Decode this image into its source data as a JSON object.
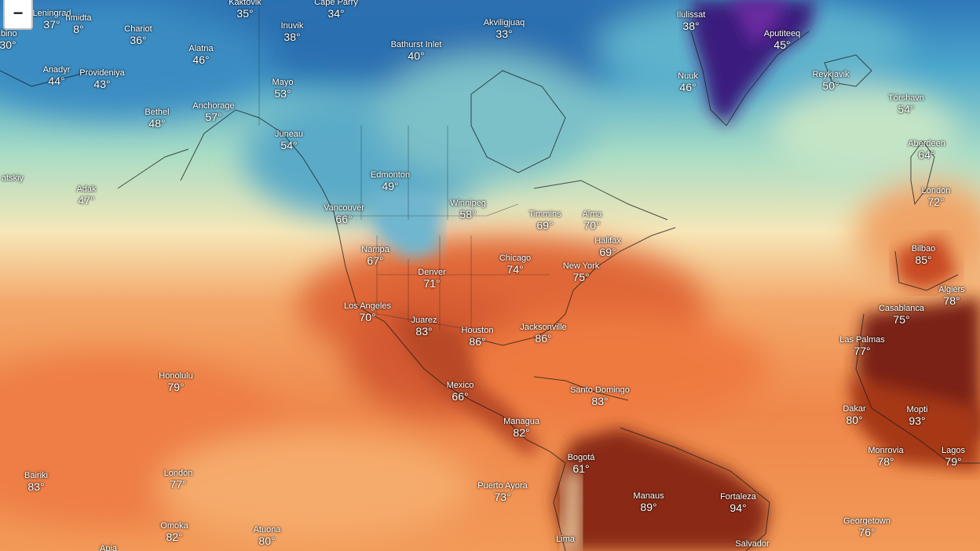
{
  "controls": {
    "zoom_out_label": "−"
  },
  "colors": {
    "cold_arctic": "#1f6fb8",
    "cool_blue": "#4aa6cc",
    "mild_green": "#a9dcc5",
    "neutral_cream": "#f6e7b8",
    "warm_orange": "#f08a4c",
    "hot_red": "#d2552c",
    "very_hot_maroon": "#7a2414",
    "greenland_purple": "#4b1f8a"
  },
  "cities": [
    {
      "name": "Leningrad",
      "temp": "37°"
    },
    {
      "name": "hmidta",
      "temp": "8°"
    },
    {
      "name": "Kaktovik",
      "temp": "35°"
    },
    {
      "name": "Cape Parry",
      "temp": "34°"
    },
    {
      "name": "ibino",
      "temp": "30°"
    },
    {
      "name": "Chariot",
      "temp": "36°"
    },
    {
      "name": "Inuvik",
      "temp": "38°"
    },
    {
      "name": "Bathurst Inlet",
      "temp": "40°"
    },
    {
      "name": "Akviligjuaq",
      "temp": "33°"
    },
    {
      "name": "Ilulissat",
      "temp": "38°"
    },
    {
      "name": "Aputiteeq",
      "temp": "45°"
    },
    {
      "name": "Anadyr",
      "temp": "44°"
    },
    {
      "name": "Provideniya",
      "temp": "43°"
    },
    {
      "name": "Alatna",
      "temp": "46°"
    },
    {
      "name": "Mayo",
      "temp": "53°"
    },
    {
      "name": "Nuuk",
      "temp": "46°"
    },
    {
      "name": "Reykjavik",
      "temp": "50°"
    },
    {
      "name": "Bethel",
      "temp": "48°"
    },
    {
      "name": "Anchorage",
      "temp": "57°"
    },
    {
      "name": "Tórshavn",
      "temp": "54°"
    },
    {
      "name": "Juneau",
      "temp": "54°"
    },
    {
      "name": "Aberdeen",
      "temp": "64°"
    },
    {
      "name": "atskiy",
      "temp": ""
    },
    {
      "name": "Edmonton",
      "temp": "49°"
    },
    {
      "name": "Adak",
      "temp": "47°"
    },
    {
      "name": "London",
      "temp": "72°"
    },
    {
      "name": "Vancouver",
      "temp": "66°"
    },
    {
      "name": "Winnipeg",
      "temp": "58°"
    },
    {
      "name": "Timmins",
      "temp": "69°"
    },
    {
      "name": "Alma",
      "temp": "70°"
    },
    {
      "name": "Halifax",
      "temp": "69°"
    },
    {
      "name": "Nampa",
      "temp": "67°"
    },
    {
      "name": "Chicago",
      "temp": "74°"
    },
    {
      "name": "Bilbao",
      "temp": "85°"
    },
    {
      "name": "New York",
      "temp": "75°"
    },
    {
      "name": "Denver",
      "temp": "71°"
    },
    {
      "name": "Algiers",
      "temp": "78°"
    },
    {
      "name": "Los Angeles",
      "temp": "70°"
    },
    {
      "name": "Casablanca",
      "temp": "75°"
    },
    {
      "name": "Juarez",
      "temp": "83°"
    },
    {
      "name": "Houston",
      "temp": "86°"
    },
    {
      "name": "Jacksonville",
      "temp": "86°"
    },
    {
      "name": "Las Palmas",
      "temp": "77°"
    },
    {
      "name": "Honolulu",
      "temp": "79°"
    },
    {
      "name": "Mexico",
      "temp": "66°"
    },
    {
      "name": "Santo Domingo",
      "temp": "83°"
    },
    {
      "name": "Dakar",
      "temp": "80°"
    },
    {
      "name": "Mopti",
      "temp": "93°"
    },
    {
      "name": "Managua",
      "temp": "82°"
    },
    {
      "name": "Monrovia",
      "temp": "78°"
    },
    {
      "name": "Lagos",
      "temp": "79°"
    },
    {
      "name": "Bogotá",
      "temp": "61°"
    },
    {
      "name": "Bairiki",
      "temp": "83°"
    },
    {
      "name": "London",
      "temp": "77°"
    },
    {
      "name": "Puerto Ayora",
      "temp": "73°"
    },
    {
      "name": "Manaus",
      "temp": "89°"
    },
    {
      "name": "Fortaleza",
      "temp": "94°"
    },
    {
      "name": "Omoka",
      "temp": "82°"
    },
    {
      "name": "Atuona",
      "temp": "80°"
    },
    {
      "name": "Georgetown",
      "temp": "76°"
    },
    {
      "name": "Lima",
      "temp": ""
    },
    {
      "name": "Salvador",
      "temp": ""
    },
    {
      "name": "Apia",
      "temp": ""
    }
  ]
}
